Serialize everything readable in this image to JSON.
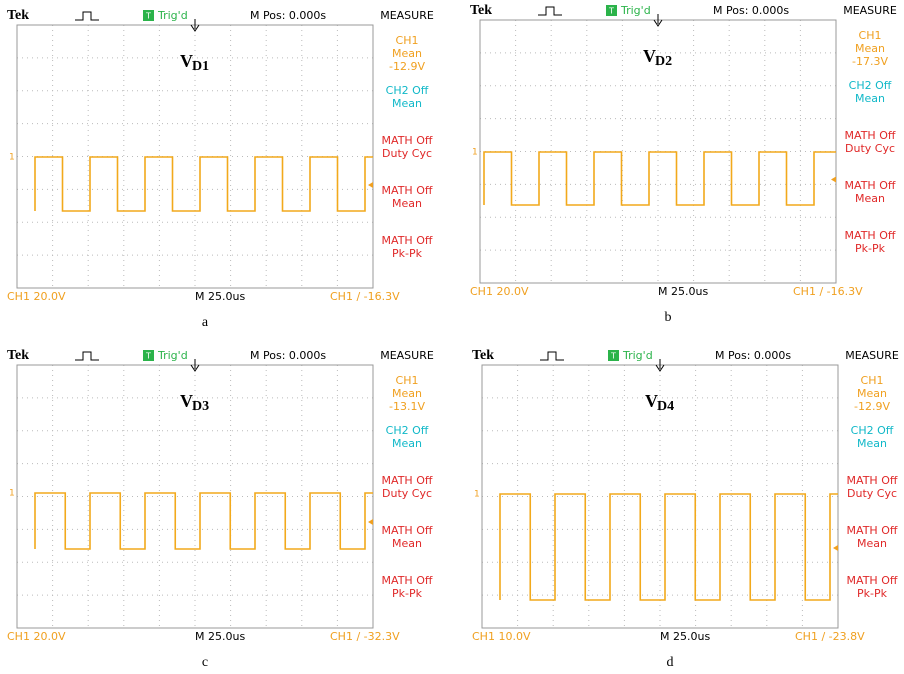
{
  "panels": [
    {
      "header": {
        "brand": "Tek",
        "trig_icon": "T",
        "trigger": "Trig'd",
        "mpos": "M Pos: 0.000s",
        "menu_title": "MEASURE"
      },
      "signal": {
        "label": "V",
        "subscript": "D1"
      },
      "channel_marker": "1",
      "menu": [
        [
          "CH1",
          "Mean",
          "-12.9V"
        ],
        [
          "CH2 Off",
          "Mean"
        ],
        [
          "MATH Off",
          "Duty Cyc"
        ],
        [
          "MATH Off",
          "Mean"
        ],
        [
          "MATH Off",
          "Pk-Pk"
        ]
      ],
      "footer": {
        "scale": "CH1 20.0V",
        "time": "M 25.0us",
        "trigger": "CH1 ∕ -16.3V"
      },
      "caption": "a"
    },
    {
      "header": {
        "brand": "Tek",
        "trig_icon": "T",
        "trigger": "Trig'd",
        "mpos": "M Pos: 0.000s",
        "menu_title": "MEASURE"
      },
      "signal": {
        "label": "V",
        "subscript": "D2"
      },
      "channel_marker": "1",
      "menu": [
        [
          "CH1",
          "Mean",
          "-17.3V"
        ],
        [
          "CH2 Off",
          "Mean"
        ],
        [
          "MATH Off",
          "Duty Cyc"
        ],
        [
          "MATH Off",
          "Mean"
        ],
        [
          "MATH Off",
          "Pk-Pk"
        ]
      ],
      "footer": {
        "scale": "CH1 20.0V",
        "time": "M 25.0us",
        "trigger": "CH1 ∕ -16.3V"
      },
      "caption": "b"
    },
    {
      "header": {
        "brand": "Tek",
        "trig_icon": "T",
        "trigger": "Trig'd",
        "mpos": "M Pos: 0.000s",
        "menu_title": "MEASURE"
      },
      "signal": {
        "label": "V",
        "subscript": "D3"
      },
      "channel_marker": "1",
      "menu": [
        [
          "CH1",
          "Mean",
          "-13.1V"
        ],
        [
          "CH2 Off",
          "Mean"
        ],
        [
          "MATH Off",
          "Duty Cyc"
        ],
        [
          "MATH Off",
          "Mean"
        ],
        [
          "MATH Off",
          "Pk-Pk"
        ]
      ],
      "footer": {
        "scale": "CH1 20.0V",
        "time": "M 25.0us",
        "trigger": "CH1 ∕ -32.3V"
      },
      "caption": "c"
    },
    {
      "header": {
        "brand": "Tek",
        "trig_icon": "T",
        "trigger": "Trig'd",
        "mpos": "M Pos: 0.000s",
        "menu_title": "MEASURE"
      },
      "signal": {
        "label": "V",
        "subscript": "D4"
      },
      "channel_marker": "1",
      "menu": [
        [
          "CH1",
          "Mean",
          "-12.9V"
        ],
        [
          "CH2 Off",
          "Mean"
        ],
        [
          "MATH Off",
          "Duty Cyc"
        ],
        [
          "MATH Off",
          "Mean"
        ],
        [
          "MATH Off",
          "Pk-Pk"
        ]
      ],
      "footer": {
        "scale": "CH1 10.0V",
        "time": "M 25.0us",
        "trigger": "CH1 ∕ -23.8V"
      },
      "caption": "d"
    }
  ]
}
